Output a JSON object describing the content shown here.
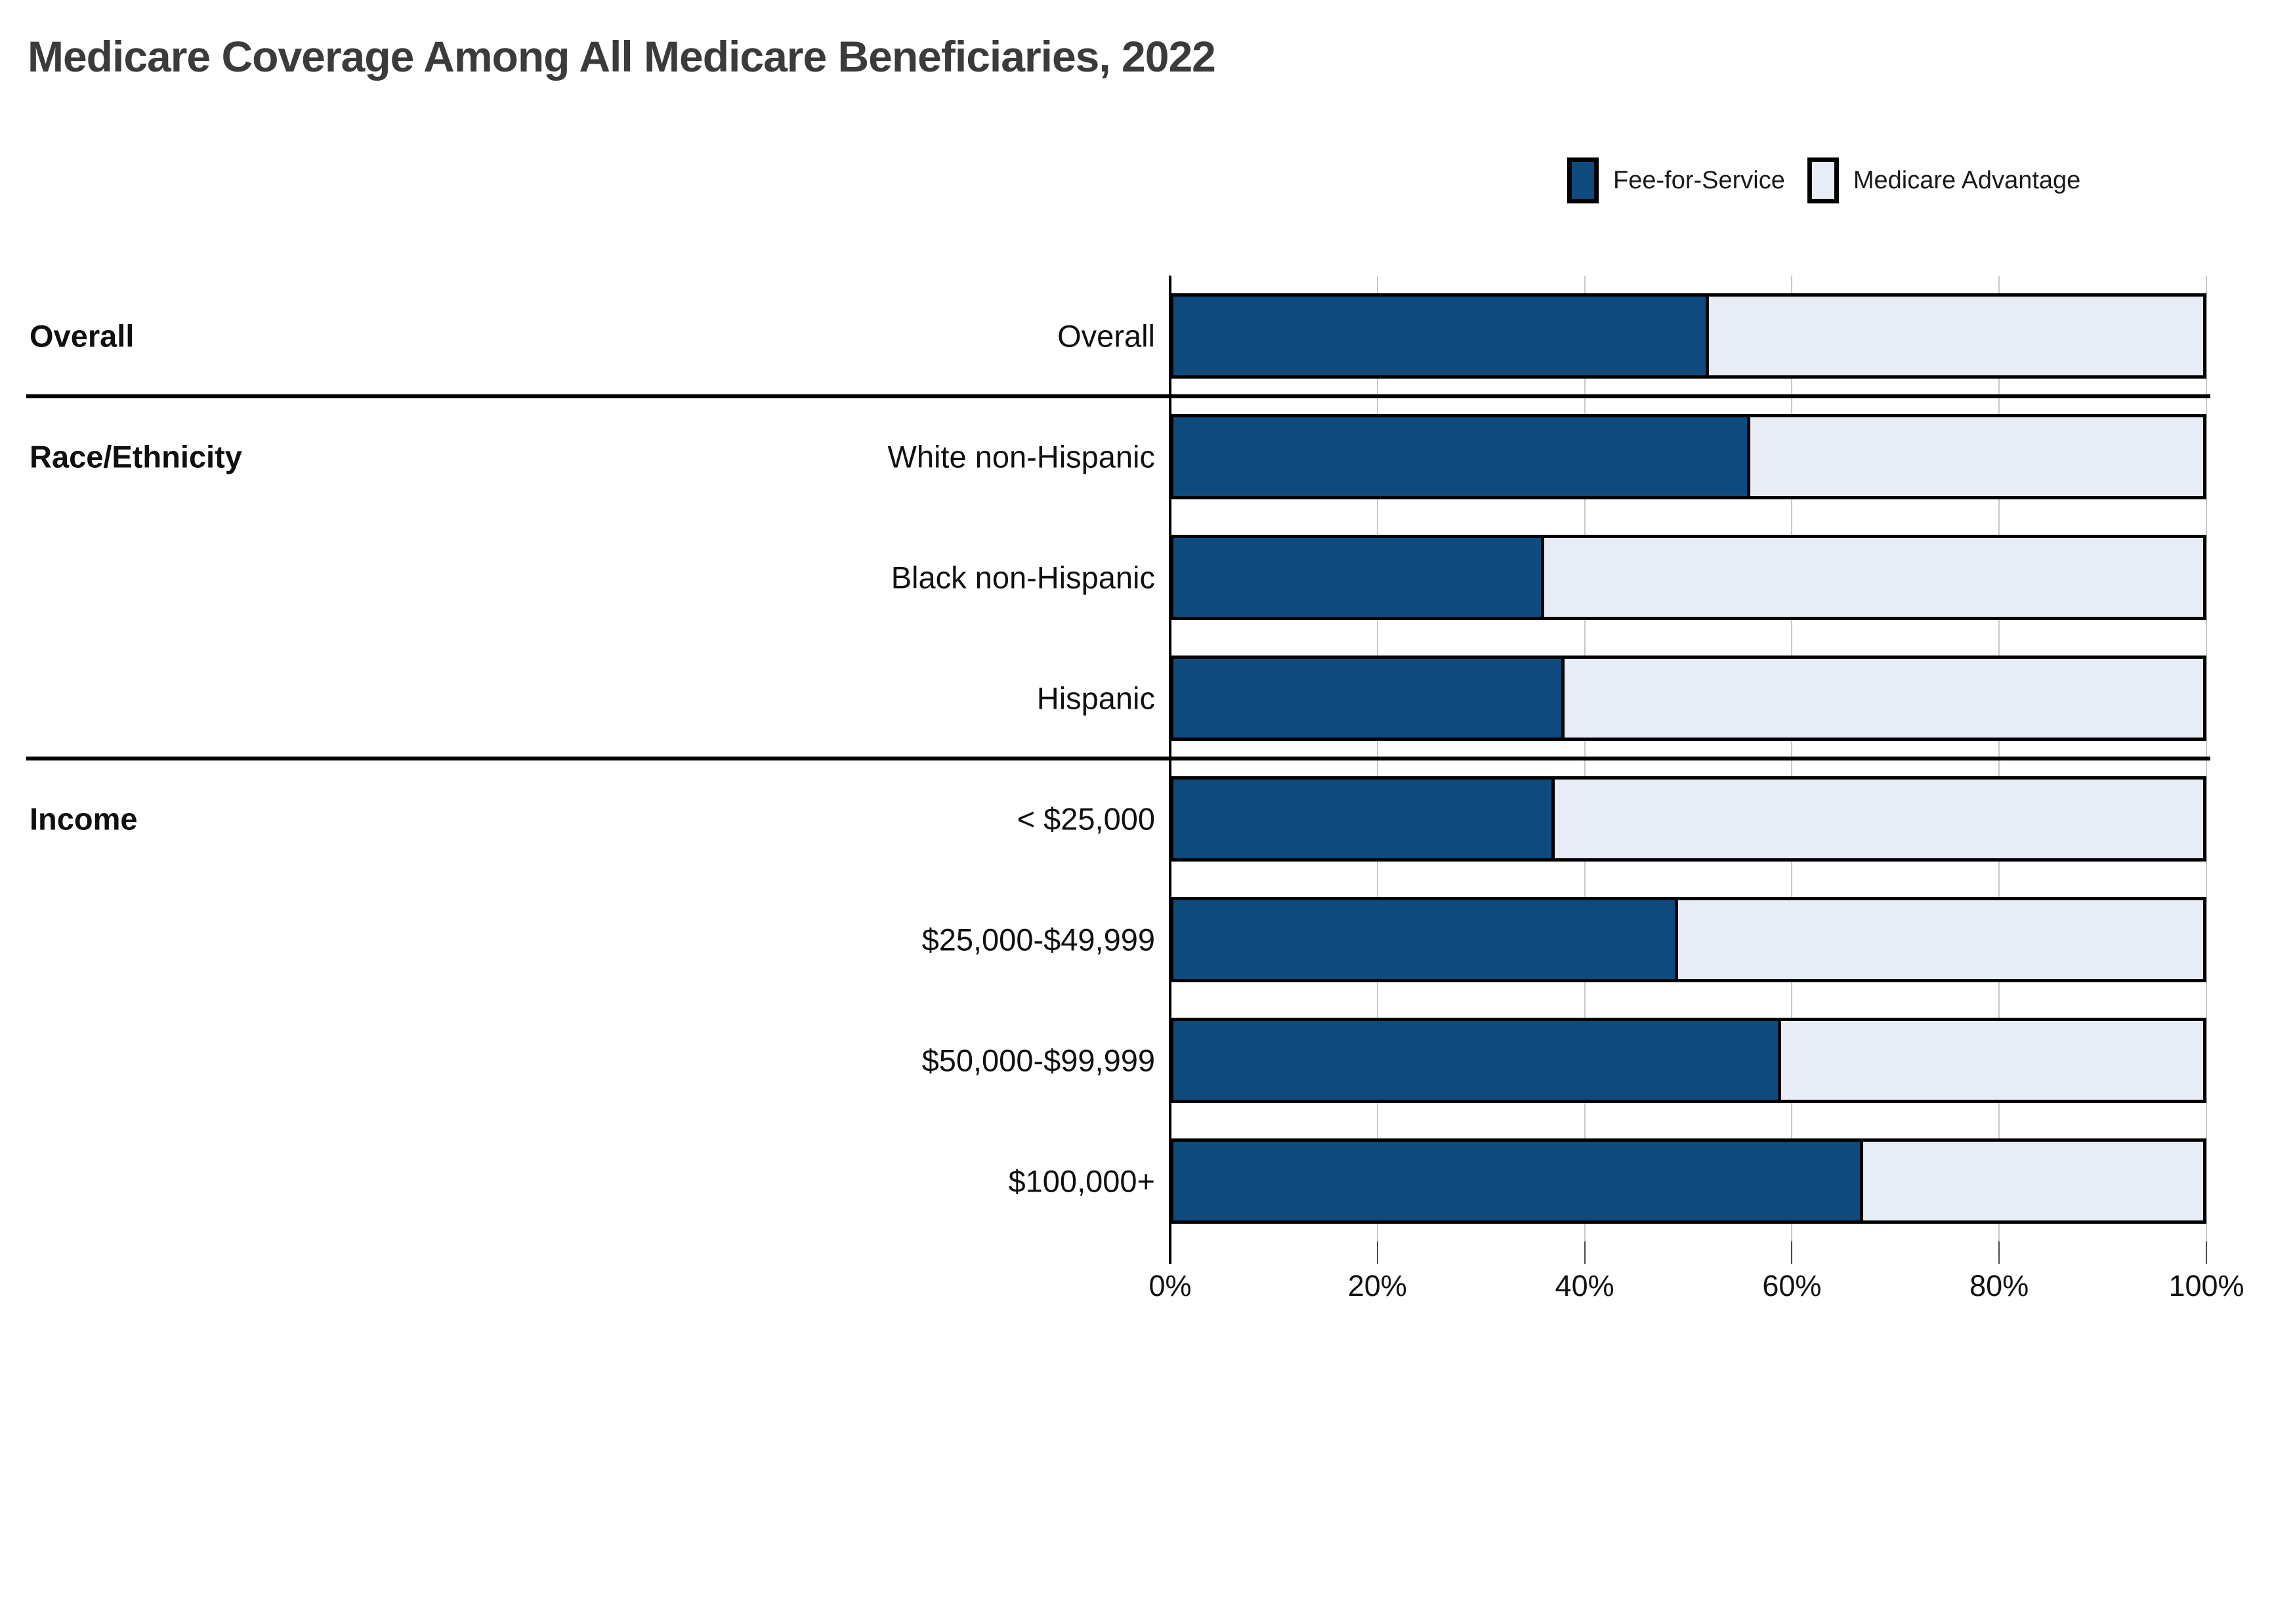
{
  "title": "Medicare Coverage Among All Medicare Beneficiaries, 2022",
  "legend": [
    {
      "label": "Fee-for-Service",
      "color": "#0e4a7e"
    },
    {
      "label": "Medicare Advantage",
      "color": "#e8ecf4"
    }
  ],
  "x_axis": {
    "tick_labels": [
      "0%",
      "20%",
      "40%",
      "60%",
      "80%",
      "100%"
    ],
    "tick_values": [
      0,
      20,
      40,
      60,
      80,
      100
    ],
    "min": 0,
    "max": 100
  },
  "groups": [
    {
      "label": "Overall",
      "row_index": 0
    },
    {
      "label": "Race/Ethnicity",
      "row_index": 1
    },
    {
      "label": "Income",
      "row_index": 4
    }
  ],
  "chart_data": {
    "type": "bar",
    "subtype": "horizontal-stacked-100pct",
    "title": "Medicare Coverage Among All Medicare Beneficiaries, 2022",
    "categories": [
      "Overall",
      "White non-Hispanic",
      "Black non-Hispanic",
      "Hispanic",
      "< $25,000",
      "$25,000-$49,999",
      "$50,000-$99,999",
      "$100,000+"
    ],
    "series": [
      {
        "name": "Fee-for-Service",
        "color": "#0e4a7e",
        "values": [
          52,
          56,
          36,
          38,
          37,
          49,
          59,
          67
        ]
      },
      {
        "name": "Medicare Advantage",
        "color": "#e8ecf4",
        "values": [
          48,
          44,
          64,
          62,
          63,
          51,
          41,
          33
        ]
      }
    ],
    "xlabel": "",
    "ylabel": "",
    "xlim": [
      0,
      100
    ],
    "grid": true,
    "legend_position": "top-right",
    "section_divider_after_rows": [
      0,
      3
    ]
  },
  "colors": {
    "ffs": "#0e4a7e",
    "ma": "#e8ecf4",
    "bar_border": "#000000",
    "gridline": "#c9c9c9",
    "title_text": "#3b3b3b",
    "label_text": "#101010"
  }
}
